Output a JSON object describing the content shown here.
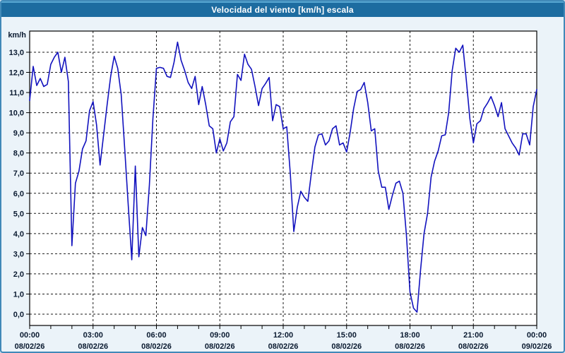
{
  "window": {
    "title": "Velocidad del viento [km/h] escala"
  },
  "colors": {
    "titlebar": "#1D6CA0",
    "titlebar_highlight": "#55A5D0",
    "page_bg": "#EBF3F9",
    "page_border": "#4189B8",
    "plot_bg": "#FFFFFF",
    "grid": "#1A1A1A",
    "axis": "#000000",
    "label": "#0A1A30",
    "line": "#1212BE"
  },
  "chart_data": {
    "type": "line",
    "title": "Velocidad del viento [km/h] escala",
    "xlabel": "",
    "ylabel": "km/h",
    "grid": true,
    "legend_position": "none",
    "y_axis": {
      "min": -0.55,
      "max": 14.05,
      "tick_step": 1.0,
      "tick_values": [
        0,
        1,
        2,
        3,
        4,
        5,
        6,
        7,
        8,
        9,
        10,
        11,
        12,
        13
      ],
      "tick_labels": [
        "0,0",
        "1,0",
        "2,0",
        "3,0",
        "4,0",
        "5,0",
        "6,0",
        "7,0",
        "8,0",
        "9,0",
        "10,0",
        "11,0",
        "12,0",
        "13,0"
      ]
    },
    "x_axis": {
      "min_hour": 0,
      "max_hour": 24,
      "minor_tick_every_hours": 1,
      "major_tick_every_hours": 3,
      "ticks": [
        {
          "hour": 0,
          "time": "00:00",
          "date": "08/02/26"
        },
        {
          "hour": 3,
          "time": "03:00",
          "date": "08/02/26"
        },
        {
          "hour": 6,
          "time": "06:00",
          "date": "08/02/26"
        },
        {
          "hour": 9,
          "time": "09:00",
          "date": "08/02/26"
        },
        {
          "hour": 12,
          "time": "12:00",
          "date": "08/02/26"
        },
        {
          "hour": 15,
          "time": "15:00",
          "date": "08/02/26"
        },
        {
          "hour": 18,
          "time": "18:00",
          "date": "08/02/26"
        },
        {
          "hour": 21,
          "time": "21:00",
          "date": "08/02/26"
        },
        {
          "hour": 24,
          "time": "00:00",
          "date": "09/02/26"
        }
      ]
    },
    "series": [
      {
        "name": "Velocidad del viento [km/h]",
        "start_hour": 0,
        "step_minutes": 10,
        "values": [
          10.6,
          12.3,
          11.35,
          11.7,
          11.3,
          11.4,
          12.4,
          12.75,
          13.0,
          12.0,
          12.75,
          11.55,
          3.4,
          6.5,
          7.1,
          8.2,
          8.6,
          10.1,
          10.55,
          9.4,
          7.4,
          8.9,
          10.4,
          11.8,
          12.8,
          12.2,
          10.9,
          8.2,
          5.4,
          2.7,
          7.35,
          2.85,
          4.3,
          3.9,
          6.4,
          9.7,
          12.2,
          12.25,
          12.2,
          11.8,
          11.75,
          12.5,
          13.5,
          12.6,
          12.1,
          11.5,
          11.2,
          11.8,
          10.4,
          11.3,
          10.4,
          9.35,
          9.2,
          8.0,
          8.7,
          8.1,
          8.5,
          9.55,
          9.8,
          11.9,
          11.6,
          12.9,
          12.4,
          12.15,
          11.3,
          10.35,
          11.2,
          11.45,
          11.75,
          9.6,
          10.4,
          10.3,
          9.2,
          9.3,
          7.0,
          4.1,
          5.3,
          6.1,
          5.8,
          5.6,
          7.0,
          8.3,
          8.9,
          8.95,
          8.4,
          8.6,
          9.2,
          9.35,
          8.4,
          8.5,
          8.05,
          9.0,
          10.2,
          11.05,
          11.15,
          11.5,
          10.5,
          9.1,
          9.2,
          7.1,
          6.3,
          6.3,
          5.2,
          5.9,
          6.5,
          6.6,
          6.0,
          3.9,
          1.1,
          0.3,
          0.1,
          2.2,
          4.0,
          5.0,
          6.8,
          7.6,
          8.1,
          8.85,
          8.9,
          10.0,
          12.1,
          13.2,
          13.0,
          13.35,
          11.6,
          9.7,
          8.5,
          9.45,
          9.6,
          10.2,
          10.47,
          10.8,
          10.35,
          9.8,
          10.5,
          9.2,
          8.85,
          8.5,
          8.25,
          7.9,
          8.95,
          8.95,
          8.4,
          10.3,
          11.15
        ]
      }
    ]
  }
}
